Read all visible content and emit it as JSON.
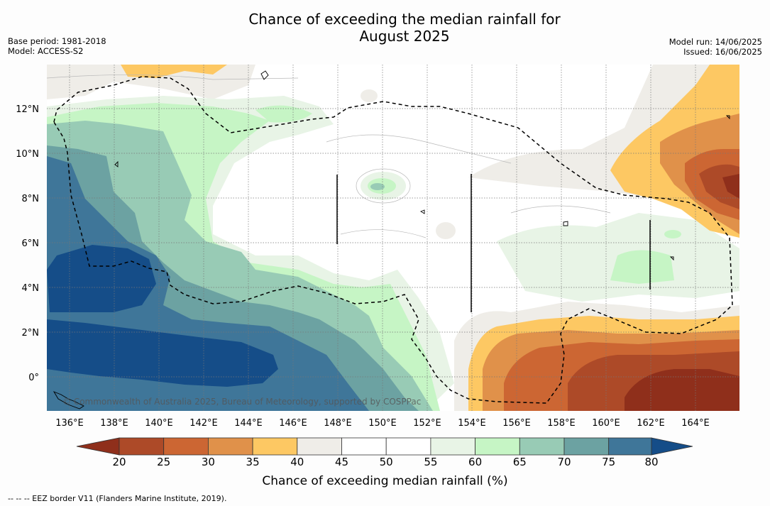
{
  "header": {
    "title_line1": "Chance of exceeding the median rainfall for",
    "title_line2": "August 2025",
    "base_period": "Base period: 1981-2018",
    "model": "Model: ACCESS-S2",
    "model_run": "Model run: 14/06/2025",
    "issued": "Issued: 16/06/2025"
  },
  "map": {
    "x_ticks": [
      "136°E",
      "138°E",
      "140°E",
      "142°E",
      "144°E",
      "146°E",
      "148°E",
      "150°E",
      "152°E",
      "154°E",
      "156°E",
      "158°E",
      "160°E",
      "162°E",
      "164°E"
    ],
    "y_ticks": [
      "12°N",
      "10°N",
      "8°N",
      "6°N",
      "4°N",
      "2°N",
      "0°"
    ],
    "watermark": "© Commonwealth of Australia 2025, Bureau of Meteorology, supported by COSPPac"
  },
  "legend": {
    "ticks": [
      "20",
      "25",
      "30",
      "35",
      "40",
      "45",
      "50",
      "55",
      "60",
      "65",
      "70",
      "75",
      "80"
    ],
    "title": "Chance of exceeding median rainfall (%)",
    "colors": [
      "#8f2f1b",
      "#ad4a28",
      "#cc6633",
      "#e0914a",
      "#fdc863",
      "#efede8",
      "#ffffff",
      "#ffffff",
      "#e8f4e6",
      "#c6f5c5",
      "#98cbb5",
      "#6ca2a2",
      "#3f7699",
      "#154d88"
    ]
  },
  "footnote": "--  --  -- EEZ border V11 (Flanders Marine Institute, 2019)."
}
